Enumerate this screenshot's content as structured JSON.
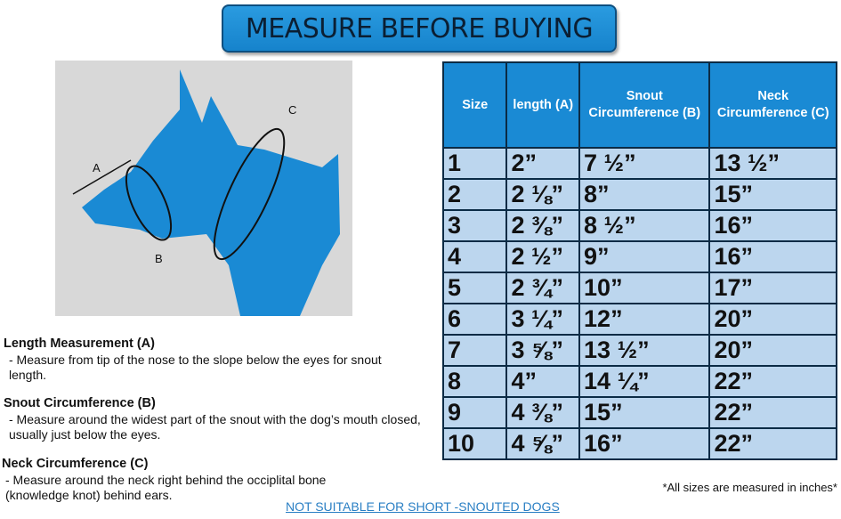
{
  "title": "MEASURE BEFORE BUYING",
  "diagram": {
    "labels": {
      "a": "A",
      "b": "B",
      "c": "C"
    },
    "colors": {
      "dog": "#1a8ad4",
      "background": "#d8d8d8"
    }
  },
  "table": {
    "headers": [
      "Size",
      "length (A)",
      "Snout Circumference (B)",
      "Neck Circumference (C)"
    ],
    "rows": [
      [
        "1",
        "2”",
        "7 ½”",
        "13 ½”"
      ],
      [
        "2",
        "2 ⅛”",
        "8”",
        "15”"
      ],
      [
        "3",
        "2 ⅜”",
        "8 ½”",
        "16”"
      ],
      [
        "4",
        "2 ½”",
        "9”",
        "16”"
      ],
      [
        "5",
        "2 ¾”",
        "10”",
        "17”"
      ],
      [
        "6",
        "3 ¼”",
        "12”",
        "20”"
      ],
      [
        "7",
        "3 ⅝”",
        "13 ½”",
        "20”"
      ],
      [
        "8",
        "4”",
        "14 ¼”",
        "22”"
      ],
      [
        "9",
        "4 ⅜”",
        "15”",
        "22”"
      ],
      [
        "10",
        "4 ⅝”",
        "16”",
        "22”"
      ]
    ]
  },
  "descriptions": [
    {
      "heading": "Length Measurement (A)",
      "text": "- Measure from tip of the nose to the slope below the eyes for snout length."
    },
    {
      "heading": "Snout Circumference (B)",
      "text": "- Measure around the widest part of the snout with the dog’s mouth closed, usually just below the eyes."
    },
    {
      "heading": "Neck Circumference (C)",
      "text": "- Measure around the neck right behind the occiplital bone (knowledge knot) behind ears."
    }
  ],
  "note": "*All sizes are measured in inches*",
  "warning": "NOT SUITABLE FOR SHORT -SNOUTED DOGS"
}
